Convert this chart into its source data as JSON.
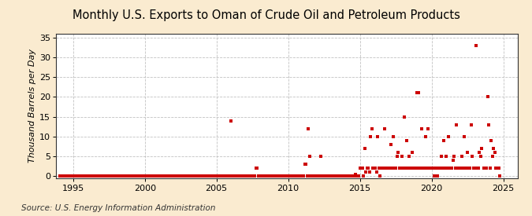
{
  "title": "Monthly U.S. Exports to Oman of Crude Oil and Petroleum Products",
  "ylabel": "Thousand Barrels per Day",
  "source": "Source: U.S. Energy Information Administration",
  "xlim": [
    1993.8,
    2026.0
  ],
  "ylim": [
    -0.5,
    36
  ],
  "yticks": [
    0,
    5,
    10,
    15,
    20,
    25,
    30,
    35
  ],
  "xticks": [
    1995,
    2000,
    2005,
    2010,
    2015,
    2020,
    2025
  ],
  "bg_color": "#faebd0",
  "plot_bg_color": "#ffffff",
  "marker_color": "#cc0000",
  "grid_color": "#bbbbbb",
  "title_fontsize": 10.5,
  "ylabel_fontsize": 8,
  "tick_fontsize": 8,
  "source_fontsize": 7.5,
  "scatter_data": [
    [
      1994.083,
      0.0
    ],
    [
      1994.167,
      0.0
    ],
    [
      1994.25,
      0.0
    ],
    [
      1994.333,
      0.0
    ],
    [
      1994.417,
      0.0
    ],
    [
      1994.5,
      0.0
    ],
    [
      1994.583,
      0.0
    ],
    [
      1994.667,
      0.0
    ],
    [
      1994.75,
      0.0
    ],
    [
      1994.833,
      0.0
    ],
    [
      1994.917,
      0.0
    ],
    [
      1995.0,
      0.0
    ],
    [
      1995.083,
      0.0
    ],
    [
      1995.167,
      0.0
    ],
    [
      1995.25,
      0.0
    ],
    [
      1995.333,
      0.0
    ],
    [
      1995.417,
      0.0
    ],
    [
      1995.5,
      0.0
    ],
    [
      1995.583,
      0.0
    ],
    [
      1995.667,
      0.0
    ],
    [
      1995.75,
      0.0
    ],
    [
      1995.833,
      0.0
    ],
    [
      1995.917,
      0.0
    ],
    [
      1996.0,
      0.0
    ],
    [
      1996.083,
      0.0
    ],
    [
      1996.167,
      0.0
    ],
    [
      1996.25,
      0.0
    ],
    [
      1996.333,
      0.0
    ],
    [
      1996.417,
      0.0
    ],
    [
      1996.5,
      0.0
    ],
    [
      1996.583,
      0.0
    ],
    [
      1996.667,
      0.0
    ],
    [
      1996.75,
      0.0
    ],
    [
      1996.833,
      0.0
    ],
    [
      1996.917,
      0.0
    ],
    [
      1997.0,
      0.0
    ],
    [
      1997.083,
      0.0
    ],
    [
      1997.167,
      0.0
    ],
    [
      1997.25,
      0.0
    ],
    [
      1997.333,
      0.0
    ],
    [
      1997.417,
      0.0
    ],
    [
      1997.5,
      0.0
    ],
    [
      1997.583,
      0.0
    ],
    [
      1997.667,
      0.0
    ],
    [
      1997.75,
      0.0
    ],
    [
      1997.833,
      0.0
    ],
    [
      1997.917,
      0.0
    ],
    [
      1998.0,
      0.0
    ],
    [
      1998.083,
      0.0
    ],
    [
      1998.167,
      0.0
    ],
    [
      1998.25,
      0.0
    ],
    [
      1998.333,
      0.0
    ],
    [
      1998.417,
      0.0
    ],
    [
      1998.5,
      0.0
    ],
    [
      1998.583,
      0.0
    ],
    [
      1998.667,
      0.0
    ],
    [
      1998.75,
      0.0
    ],
    [
      1998.833,
      0.0
    ],
    [
      1998.917,
      0.0
    ],
    [
      1999.0,
      0.0
    ],
    [
      1999.083,
      0.0
    ],
    [
      1999.167,
      0.0
    ],
    [
      1999.25,
      0.0
    ],
    [
      1999.333,
      0.0
    ],
    [
      1999.417,
      0.0
    ],
    [
      1999.5,
      0.0
    ],
    [
      1999.583,
      0.0
    ],
    [
      1999.667,
      0.0
    ],
    [
      1999.75,
      0.0
    ],
    [
      1999.833,
      0.0
    ],
    [
      1999.917,
      0.0
    ],
    [
      2000.0,
      0.0
    ],
    [
      2000.083,
      0.0
    ],
    [
      2000.167,
      0.0
    ],
    [
      2000.25,
      0.0
    ],
    [
      2000.333,
      0.0
    ],
    [
      2000.417,
      0.0
    ],
    [
      2000.5,
      0.0
    ],
    [
      2000.583,
      0.0
    ],
    [
      2000.667,
      0.0
    ],
    [
      2000.75,
      0.0
    ],
    [
      2000.833,
      0.0
    ],
    [
      2000.917,
      0.0
    ],
    [
      2001.0,
      0.0
    ],
    [
      2001.083,
      0.0
    ],
    [
      2001.167,
      0.0
    ],
    [
      2001.25,
      0.0
    ],
    [
      2001.333,
      0.0
    ],
    [
      2001.417,
      0.0
    ],
    [
      2001.5,
      0.0
    ],
    [
      2001.583,
      0.0
    ],
    [
      2001.667,
      0.0
    ],
    [
      2001.75,
      0.0
    ],
    [
      2001.833,
      0.0
    ],
    [
      2001.917,
      0.0
    ],
    [
      2002.0,
      0.0
    ],
    [
      2002.083,
      0.0
    ],
    [
      2002.167,
      0.0
    ],
    [
      2002.25,
      0.0
    ],
    [
      2002.333,
      0.0
    ],
    [
      2002.417,
      0.0
    ],
    [
      2002.5,
      0.0
    ],
    [
      2002.583,
      0.0
    ],
    [
      2002.667,
      0.0
    ],
    [
      2002.75,
      0.0
    ],
    [
      2002.833,
      0.0
    ],
    [
      2002.917,
      0.0
    ],
    [
      2003.0,
      0.0
    ],
    [
      2003.083,
      0.0
    ],
    [
      2003.167,
      0.0
    ],
    [
      2003.25,
      0.0
    ],
    [
      2003.333,
      0.0
    ],
    [
      2003.417,
      0.0
    ],
    [
      2003.5,
      0.0
    ],
    [
      2003.583,
      0.0
    ],
    [
      2003.667,
      0.0
    ],
    [
      2003.75,
      0.0
    ],
    [
      2003.833,
      0.0
    ],
    [
      2003.917,
      0.0
    ],
    [
      2004.0,
      0.0
    ],
    [
      2004.083,
      0.0
    ],
    [
      2004.167,
      0.0
    ],
    [
      2004.25,
      0.0
    ],
    [
      2004.333,
      0.0
    ],
    [
      2004.417,
      0.0
    ],
    [
      2004.5,
      0.0
    ],
    [
      2004.583,
      0.0
    ],
    [
      2004.667,
      0.0
    ],
    [
      2004.75,
      0.0
    ],
    [
      2004.833,
      0.0
    ],
    [
      2004.917,
      0.0
    ],
    [
      2005.0,
      0.0
    ],
    [
      2005.083,
      0.0
    ],
    [
      2005.167,
      0.0
    ],
    [
      2005.25,
      0.0
    ],
    [
      2005.333,
      0.0
    ],
    [
      2005.417,
      0.0
    ],
    [
      2005.5,
      0.0
    ],
    [
      2005.583,
      0.0
    ],
    [
      2005.667,
      0.0
    ],
    [
      2005.75,
      0.0
    ],
    [
      2005.833,
      0.0
    ],
    [
      2005.917,
      0.0
    ],
    [
      2006.0,
      14.0
    ],
    [
      2006.083,
      0.0
    ],
    [
      2006.167,
      0.0
    ],
    [
      2006.25,
      0.0
    ],
    [
      2006.333,
      0.0
    ],
    [
      2006.417,
      0.0
    ],
    [
      2006.5,
      0.0
    ],
    [
      2006.583,
      0.0
    ],
    [
      2006.667,
      0.0
    ],
    [
      2006.75,
      0.0
    ],
    [
      2006.833,
      0.0
    ],
    [
      2006.917,
      0.0
    ],
    [
      2007.0,
      0.0
    ],
    [
      2007.083,
      0.0
    ],
    [
      2007.167,
      0.0
    ],
    [
      2007.25,
      0.0
    ],
    [
      2007.333,
      0.0
    ],
    [
      2007.417,
      0.0
    ],
    [
      2007.5,
      0.0
    ],
    [
      2007.583,
      0.0
    ],
    [
      2007.667,
      0.0
    ],
    [
      2007.75,
      2.0
    ],
    [
      2007.833,
      2.0
    ],
    [
      2007.917,
      0.0
    ],
    [
      2008.0,
      0.0
    ],
    [
      2008.083,
      0.0
    ],
    [
      2008.167,
      0.0
    ],
    [
      2008.25,
      0.0
    ],
    [
      2008.333,
      0.0
    ],
    [
      2008.417,
      0.0
    ],
    [
      2008.5,
      0.0
    ],
    [
      2008.583,
      0.0
    ],
    [
      2008.667,
      0.0
    ],
    [
      2008.75,
      0.0
    ],
    [
      2008.833,
      0.0
    ],
    [
      2008.917,
      0.0
    ],
    [
      2009.0,
      0.0
    ],
    [
      2009.083,
      0.0
    ],
    [
      2009.167,
      0.0
    ],
    [
      2009.25,
      0.0
    ],
    [
      2009.333,
      0.0
    ],
    [
      2009.417,
      0.0
    ],
    [
      2009.5,
      0.0
    ],
    [
      2009.583,
      0.0
    ],
    [
      2009.667,
      0.0
    ],
    [
      2009.75,
      0.0
    ],
    [
      2009.833,
      0.0
    ],
    [
      2009.917,
      0.0
    ],
    [
      2010.0,
      0.0
    ],
    [
      2010.083,
      0.0
    ],
    [
      2010.167,
      0.0
    ],
    [
      2010.25,
      0.0
    ],
    [
      2010.333,
      0.0
    ],
    [
      2010.417,
      0.0
    ],
    [
      2010.5,
      0.0
    ],
    [
      2010.583,
      0.0
    ],
    [
      2010.667,
      0.0
    ],
    [
      2010.75,
      0.0
    ],
    [
      2010.833,
      0.0
    ],
    [
      2010.917,
      0.0
    ],
    [
      2011.0,
      0.0
    ],
    [
      2011.083,
      0.0
    ],
    [
      2011.167,
      3.0
    ],
    [
      2011.25,
      3.0
    ],
    [
      2011.333,
      0.0
    ],
    [
      2011.417,
      12.0
    ],
    [
      2011.5,
      5.0
    ],
    [
      2011.583,
      0.0
    ],
    [
      2011.667,
      0.0
    ],
    [
      2011.75,
      0.0
    ],
    [
      2011.833,
      0.0
    ],
    [
      2011.917,
      0.0
    ],
    [
      2012.0,
      0.0
    ],
    [
      2012.083,
      0.0
    ],
    [
      2012.167,
      0.0
    ],
    [
      2012.25,
      5.0
    ],
    [
      2012.333,
      0.0
    ],
    [
      2012.417,
      0.0
    ],
    [
      2012.5,
      0.0
    ],
    [
      2012.583,
      0.0
    ],
    [
      2012.667,
      0.0
    ],
    [
      2012.75,
      0.0
    ],
    [
      2012.833,
      0.0
    ],
    [
      2012.917,
      0.0
    ],
    [
      2013.0,
      0.0
    ],
    [
      2013.083,
      0.0
    ],
    [
      2013.167,
      0.0
    ],
    [
      2013.25,
      0.0
    ],
    [
      2013.333,
      0.0
    ],
    [
      2013.417,
      0.0
    ],
    [
      2013.5,
      0.0
    ],
    [
      2013.583,
      0.0
    ],
    [
      2013.667,
      0.0
    ],
    [
      2013.75,
      0.0
    ],
    [
      2013.833,
      0.0
    ],
    [
      2013.917,
      0.0
    ],
    [
      2014.0,
      0.0
    ],
    [
      2014.083,
      0.0
    ],
    [
      2014.167,
      0.0
    ],
    [
      2014.25,
      0.0
    ],
    [
      2014.333,
      0.0
    ],
    [
      2014.417,
      0.0
    ],
    [
      2014.5,
      0.0
    ],
    [
      2014.583,
      0.0
    ],
    [
      2014.667,
      0.5
    ],
    [
      2014.75,
      0.0
    ],
    [
      2014.833,
      0.0
    ],
    [
      2014.917,
      0.0
    ],
    [
      2015.0,
      2.0
    ],
    [
      2015.083,
      2.0
    ],
    [
      2015.167,
      2.0
    ],
    [
      2015.25,
      0.0
    ],
    [
      2015.333,
      7.0
    ],
    [
      2015.417,
      1.0
    ],
    [
      2015.5,
      2.0
    ],
    [
      2015.583,
      2.0
    ],
    [
      2015.667,
      1.0
    ],
    [
      2015.75,
      10.0
    ],
    [
      2015.833,
      12.0
    ],
    [
      2015.917,
      2.0
    ],
    [
      2016.0,
      2.0
    ],
    [
      2016.083,
      2.0
    ],
    [
      2016.167,
      1.0
    ],
    [
      2016.25,
      10.0
    ],
    [
      2016.333,
      2.0
    ],
    [
      2016.417,
      0.0
    ],
    [
      2016.5,
      2.0
    ],
    [
      2016.583,
      2.0
    ],
    [
      2016.667,
      2.0
    ],
    [
      2016.75,
      12.0
    ],
    [
      2016.833,
      2.0
    ],
    [
      2016.917,
      2.0
    ],
    [
      2017.0,
      2.0
    ],
    [
      2017.083,
      2.0
    ],
    [
      2017.167,
      8.0
    ],
    [
      2017.25,
      2.0
    ],
    [
      2017.333,
      10.0
    ],
    [
      2017.417,
      2.0
    ],
    [
      2017.5,
      2.0
    ],
    [
      2017.583,
      5.0
    ],
    [
      2017.667,
      6.0
    ],
    [
      2017.75,
      2.0
    ],
    [
      2017.833,
      2.0
    ],
    [
      2017.917,
      5.0
    ],
    [
      2018.0,
      2.0
    ],
    [
      2018.083,
      15.0
    ],
    [
      2018.167,
      2.0
    ],
    [
      2018.25,
      9.0
    ],
    [
      2018.333,
      2.0
    ],
    [
      2018.417,
      5.0
    ],
    [
      2018.5,
      2.0
    ],
    [
      2018.583,
      2.0
    ],
    [
      2018.667,
      6.0
    ],
    [
      2018.75,
      2.0
    ],
    [
      2018.833,
      2.0
    ],
    [
      2018.917,
      2.0
    ],
    [
      2019.0,
      21.0
    ],
    [
      2019.083,
      21.0
    ],
    [
      2019.167,
      2.0
    ],
    [
      2019.25,
      2.0
    ],
    [
      2019.333,
      12.0
    ],
    [
      2019.417,
      2.0
    ],
    [
      2019.5,
      2.0
    ],
    [
      2019.583,
      10.0
    ],
    [
      2019.667,
      2.0
    ],
    [
      2019.75,
      12.0
    ],
    [
      2019.833,
      2.0
    ],
    [
      2019.917,
      2.0
    ],
    [
      2020.0,
      2.0
    ],
    [
      2020.083,
      2.0
    ],
    [
      2020.167,
      0.0
    ],
    [
      2020.25,
      2.0
    ],
    [
      2020.333,
      2.0
    ],
    [
      2020.417,
      0.0
    ],
    [
      2020.5,
      2.0
    ],
    [
      2020.583,
      2.0
    ],
    [
      2020.667,
      5.0
    ],
    [
      2020.75,
      2.0
    ],
    [
      2020.833,
      9.0
    ],
    [
      2020.917,
      2.0
    ],
    [
      2021.0,
      5.0
    ],
    [
      2021.083,
      2.0
    ],
    [
      2021.167,
      10.0
    ],
    [
      2021.25,
      2.0
    ],
    [
      2021.333,
      2.0
    ],
    [
      2021.417,
      2.0
    ],
    [
      2021.5,
      4.0
    ],
    [
      2021.583,
      5.0
    ],
    [
      2021.667,
      2.0
    ],
    [
      2021.75,
      13.0
    ],
    [
      2021.833,
      2.0
    ],
    [
      2021.917,
      2.0
    ],
    [
      2022.0,
      2.0
    ],
    [
      2022.083,
      5.0
    ],
    [
      2022.167,
      2.0
    ],
    [
      2022.25,
      10.0
    ],
    [
      2022.333,
      2.0
    ],
    [
      2022.417,
      2.0
    ],
    [
      2022.5,
      6.0
    ],
    [
      2022.583,
      2.0
    ],
    [
      2022.667,
      2.0
    ],
    [
      2022.75,
      13.0
    ],
    [
      2022.833,
      5.0
    ],
    [
      2022.917,
      2.0
    ],
    [
      2023.0,
      2.0
    ],
    [
      2023.083,
      33.0
    ],
    [
      2023.167,
      2.0
    ],
    [
      2023.25,
      2.0
    ],
    [
      2023.333,
      6.0
    ],
    [
      2023.417,
      5.0
    ],
    [
      2023.5,
      7.0
    ],
    [
      2023.667,
      2.0
    ],
    [
      2023.75,
      2.0
    ],
    [
      2023.833,
      2.0
    ],
    [
      2023.917,
      20.0
    ],
    [
      2024.0,
      13.0
    ],
    [
      2024.083,
      2.0
    ],
    [
      2024.167,
      9.0
    ],
    [
      2024.25,
      5.0
    ],
    [
      2024.333,
      7.0
    ],
    [
      2024.417,
      6.0
    ],
    [
      2024.5,
      2.0
    ],
    [
      2024.583,
      2.0
    ],
    [
      2024.667,
      2.0
    ],
    [
      2024.75,
      0.0
    ]
  ]
}
